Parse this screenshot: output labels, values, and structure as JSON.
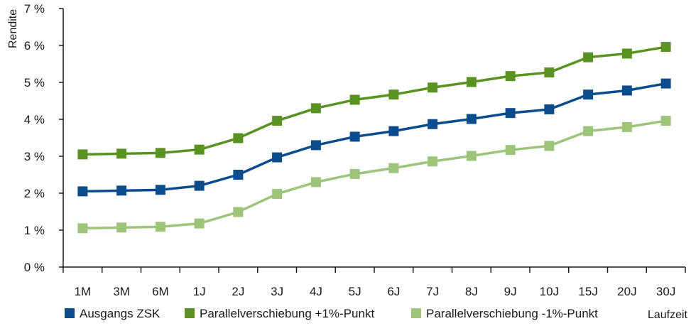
{
  "chart_data": {
    "type": "line",
    "title": "",
    "ylabel": "Rendite",
    "xlabel": "Laufzeit",
    "ylim": [
      0,
      7
    ],
    "yticks": [
      "0 %",
      "1 %",
      "2 %",
      "3 %",
      "4 %",
      "5 %",
      "6 %",
      "7 %"
    ],
    "categories": [
      "1M",
      "3M",
      "6M",
      "1J",
      "2J",
      "3J",
      "4J",
      "5J",
      "6J",
      "7J",
      "8J",
      "9J",
      "10J",
      "15J",
      "20J",
      "30J"
    ],
    "grid": false,
    "legend_position": "bottom",
    "series": [
      {
        "name": "Ausgangs ZSK",
        "color": "#0b4c8c",
        "values": [
          2.05,
          2.07,
          2.09,
          2.2,
          2.5,
          2.97,
          3.3,
          3.53,
          3.68,
          3.87,
          4.01,
          4.17,
          4.27,
          4.67,
          4.78,
          4.97
        ]
      },
      {
        "name": "Parallelverschiebung +1%-Punkt",
        "color": "#5a9221",
        "values": [
          3.05,
          3.07,
          3.09,
          3.18,
          3.49,
          3.96,
          4.3,
          4.53,
          4.67,
          4.86,
          5.01,
          5.17,
          5.27,
          5.68,
          5.78,
          5.96
        ]
      },
      {
        "name": "Parallelverschiebung -1%-Punkt",
        "color": "#9ec47a",
        "values": [
          1.05,
          1.07,
          1.09,
          1.18,
          1.49,
          1.98,
          2.3,
          2.52,
          2.68,
          2.86,
          3.01,
          3.17,
          3.28,
          3.68,
          3.79,
          3.96
        ]
      }
    ]
  }
}
